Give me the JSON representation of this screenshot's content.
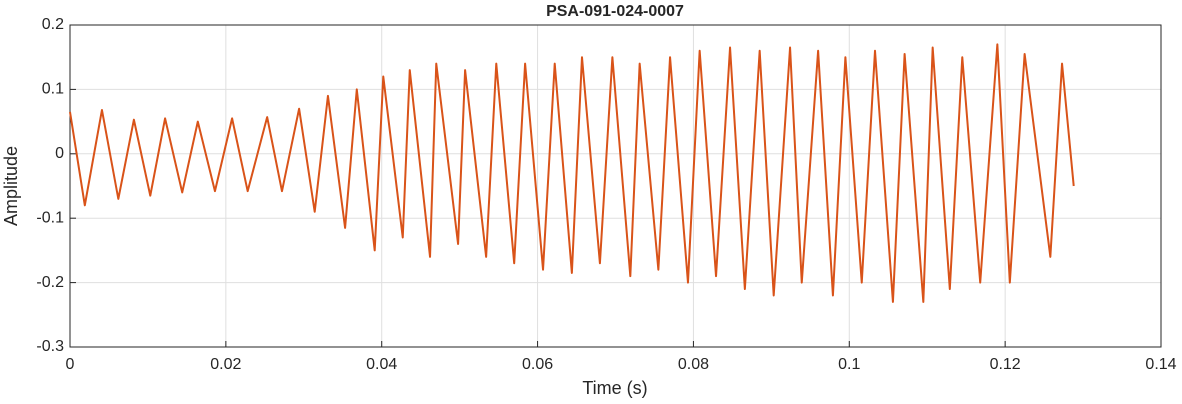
{
  "chart_data": {
    "type": "line",
    "title": "PSA-091-024-0007",
    "xlabel": "Time (s)",
    "ylabel": "Amplitude",
    "x": [
      0,
      0.0019,
      0.0041,
      0.0062,
      0.0082,
      0.0103,
      0.0122,
      0.0144,
      0.0164,
      0.0186,
      0.0208,
      0.0228,
      0.0253,
      0.0272,
      0.0294,
      0.0314,
      0.0331,
      0.0353,
      0.0368,
      0.0391,
      0.0402,
      0.0427,
      0.0436,
      0.0462,
      0.047,
      0.0498,
      0.0507,
      0.0534,
      0.0547,
      0.057,
      0.0584,
      0.0607,
      0.0622,
      0.0644,
      0.0657,
      0.068,
      0.0696,
      0.0719,
      0.0731,
      0.0755,
      0.077,
      0.0793,
      0.0808,
      0.0829,
      0.0847,
      0.0866,
      0.0885,
      0.0903,
      0.0924,
      0.0939,
      0.096,
      0.0979,
      0.0995,
      0.1016,
      0.1033,
      0.1056,
      0.1071,
      0.1095,
      0.1107,
      0.1129,
      0.1145,
      0.1168,
      0.119,
      0.1206,
      0.1225,
      0.1258,
      0.1273,
      0.1288
    ],
    "series": [
      {
        "name": "Amplitude",
        "color": "#d95319",
        "values": [
          0.065,
          -0.08,
          0.068,
          -0.07,
          0.053,
          -0.065,
          0.055,
          -0.06,
          0.05,
          -0.058,
          0.055,
          -0.058,
          0.057,
          -0.058,
          0.07,
          -0.09,
          0.09,
          -0.115,
          0.1,
          -0.15,
          0.12,
          -0.13,
          0.13,
          -0.16,
          0.14,
          -0.14,
          0.13,
          -0.16,
          0.14,
          -0.17,
          0.14,
          -0.18,
          0.14,
          -0.185,
          0.15,
          -0.17,
          0.15,
          -0.19,
          0.14,
          -0.18,
          0.15,
          -0.2,
          0.16,
          -0.19,
          0.165,
          -0.21,
          0.16,
          -0.22,
          0.165,
          -0.2,
          0.16,
          -0.22,
          0.15,
          -0.2,
          0.16,
          -0.23,
          0.155,
          -0.23,
          0.165,
          -0.21,
          0.15,
          -0.2,
          0.17,
          -0.2,
          0.155,
          -0.16,
          0.14,
          -0.05
        ]
      }
    ],
    "xlim": [
      0,
      0.14
    ],
    "xticks": [
      0,
      0.02,
      0.04,
      0.06,
      0.08,
      0.1,
      0.12,
      0.14
    ],
    "ylim": [
      -0.3,
      0.2
    ],
    "yticks": [
      -0.3,
      -0.2,
      -0.1,
      0,
      0.1,
      0.2
    ],
    "grid": true
  }
}
